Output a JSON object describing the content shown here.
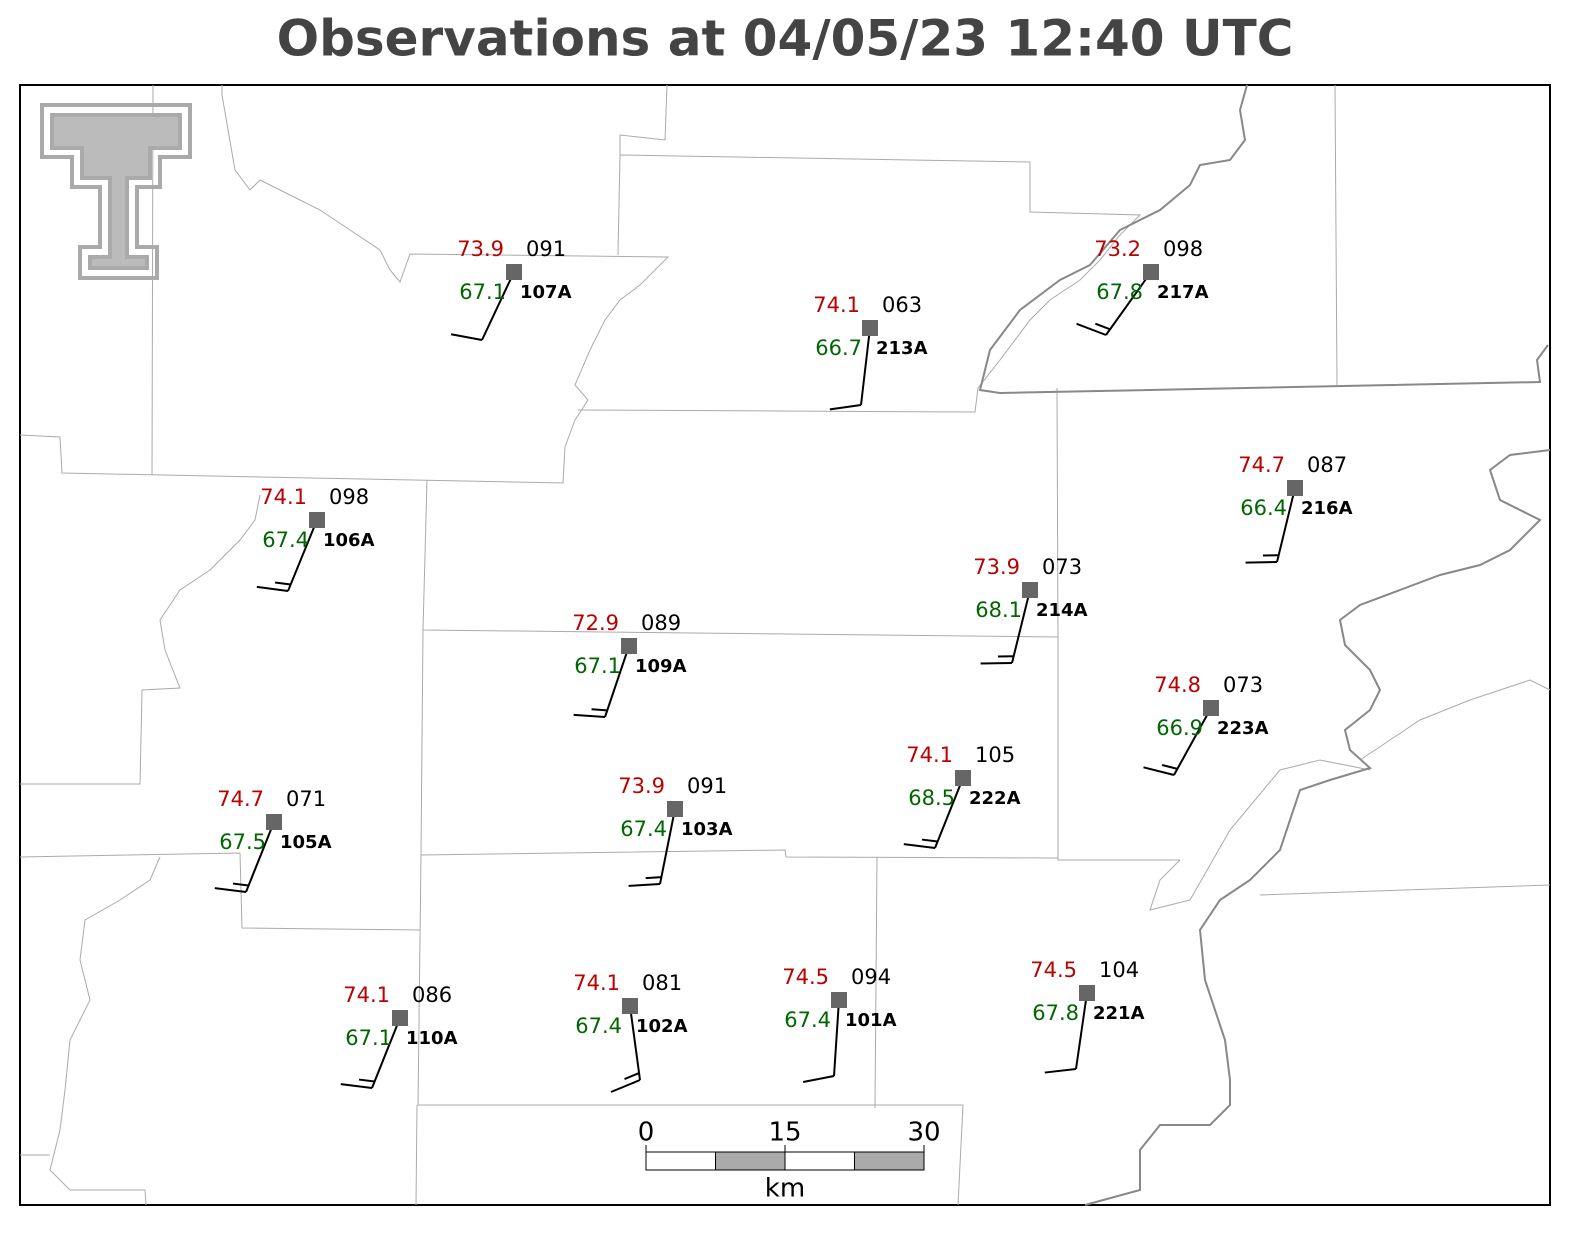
{
  "title": "Observations at 04/05/23 12:40 UTC",
  "stations": [
    {
      "temp": 73.9,
      "dewpoint": 67.1,
      "pressure": "091",
      "id": "107A"
    },
    {
      "temp": 74.1,
      "dewpoint": 66.7,
      "pressure": "063",
      "id": "213A"
    },
    {
      "temp": 73.2,
      "dewpoint": 67.8,
      "pressure": "098",
      "id": "217A"
    },
    {
      "temp": 74.7,
      "dewpoint": 66.4,
      "pressure": "087",
      "id": "216A"
    },
    {
      "temp": 74.1,
      "dewpoint": 67.4,
      "pressure": "098",
      "id": "106A"
    },
    {
      "temp": 73.9,
      "dewpoint": 68.1,
      "pressure": "073",
      "id": "214A"
    },
    {
      "temp": 72.9,
      "dewpoint": 67.1,
      "pressure": "089",
      "id": "109A"
    },
    {
      "temp": 74.8,
      "dewpoint": 66.9,
      "pressure": "073",
      "id": "223A"
    },
    {
      "temp": 74.1,
      "dewpoint": 68.5,
      "pressure": "105",
      "id": "222A"
    },
    {
      "temp": 74.7,
      "dewpoint": 67.5,
      "pressure": "071",
      "id": "105A"
    },
    {
      "temp": 73.9,
      "dewpoint": 67.4,
      "pressure": "091",
      "id": "103A"
    },
    {
      "temp": 74.1,
      "dewpoint": 67.1,
      "pressure": "086",
      "id": "110A"
    },
    {
      "temp": 74.1,
      "dewpoint": 67.4,
      "pressure": "081",
      "id": "102A"
    },
    {
      "temp": 74.5,
      "dewpoint": 67.4,
      "pressure": "094",
      "id": "101A"
    },
    {
      "temp": 74.5,
      "dewpoint": 67.8,
      "pressure": "104",
      "id": "221A"
    }
  ],
  "scale_bar": {
    "ticks": [
      0,
      15,
      30
    ],
    "unit": "km"
  }
}
